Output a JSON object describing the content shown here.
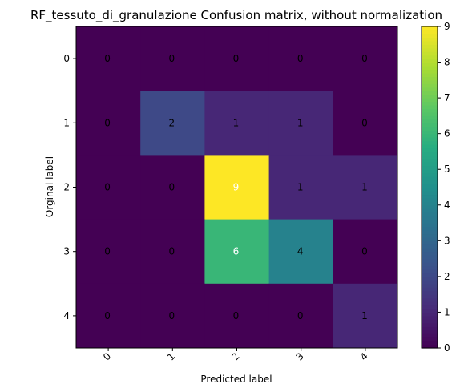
{
  "chart_data": {
    "type": "heatmap",
    "title": "RF_tessuto_di_granulazione Confusion matrix, without normalization",
    "xlabel": "Predicted label",
    "ylabel": "Orginal label",
    "x_ticks": [
      "0",
      "1",
      "2",
      "3",
      "4"
    ],
    "y_ticks": [
      "0",
      "1",
      "2",
      "3",
      "4"
    ],
    "matrix": [
      [
        0,
        0,
        0,
        0,
        0
      ],
      [
        0,
        2,
        1,
        1,
        0
      ],
      [
        0,
        0,
        9,
        1,
        1
      ],
      [
        0,
        0,
        6,
        4,
        0
      ],
      [
        0,
        0,
        0,
        0,
        1
      ]
    ],
    "colormap": "viridis",
    "colorbar": {
      "range": [
        0,
        9
      ],
      "ticks": [
        "0",
        "1",
        "2",
        "3",
        "4",
        "5",
        "6",
        "7",
        "8",
        "9"
      ]
    }
  }
}
